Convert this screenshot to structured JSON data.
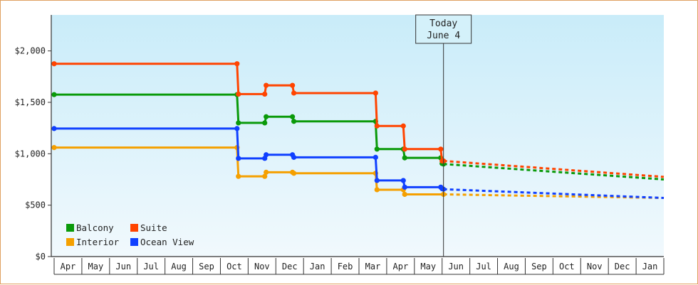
{
  "chart_data": {
    "type": "line",
    "title": "",
    "xlabel": "",
    "ylabel": "",
    "x_ticks": [
      "Apr",
      "May",
      "Jun",
      "Jul",
      "Aug",
      "Sep",
      "Oct",
      "Nov",
      "Dec",
      "Jan",
      "Feb",
      "Mar",
      "Apr",
      "May",
      "Jun",
      "Jul",
      "Aug",
      "Sep",
      "Oct",
      "Nov",
      "Dec",
      "Jan"
    ],
    "y_ticks": [
      {
        "value": 0,
        "label": "$0"
      },
      {
        "value": 500,
        "label": "$500"
      },
      {
        "value": 1000,
        "label": "$1,000"
      },
      {
        "value": 1500,
        "label": "$1,500"
      },
      {
        "value": 2000,
        "label": "$2,000"
      }
    ],
    "ylim": [
      0,
      2350
    ],
    "xlim": [
      0,
      22.0
    ],
    "step_lines": true,
    "today_marker": {
      "line1": "Today",
      "line2": "June 4",
      "x": 14.05
    },
    "legend_position": "bottom-left",
    "series": [
      {
        "name": "Balcony",
        "color": "#0a9a0a",
        "points": [
          [
            0,
            1575
          ],
          [
            6.6,
            1575
          ],
          [
            6.65,
            1300
          ],
          [
            7.6,
            1300
          ],
          [
            7.65,
            1360
          ],
          [
            8.6,
            1360
          ],
          [
            8.65,
            1315
          ],
          [
            11.6,
            1315
          ],
          [
            11.65,
            1045
          ],
          [
            12.6,
            1045
          ],
          [
            12.65,
            960
          ],
          [
            13.95,
            960
          ],
          [
            14.0,
            905
          ],
          [
            14.05,
            900
          ]
        ],
        "projection": [
          [
            14.05,
            900
          ],
          [
            22.0,
            750
          ]
        ]
      },
      {
        "name": "Suite",
        "color": "#ff4400",
        "points": [
          [
            0,
            1875
          ],
          [
            6.6,
            1875
          ],
          [
            6.65,
            1580
          ],
          [
            7.6,
            1580
          ],
          [
            7.65,
            1665
          ],
          [
            8.6,
            1665
          ],
          [
            8.65,
            1590
          ],
          [
            11.6,
            1590
          ],
          [
            11.65,
            1270
          ],
          [
            12.6,
            1270
          ],
          [
            12.65,
            1045
          ],
          [
            13.95,
            1045
          ],
          [
            14.0,
            930
          ],
          [
            14.05,
            930
          ]
        ],
        "projection": [
          [
            14.05,
            930
          ],
          [
            22.0,
            775
          ]
        ]
      },
      {
        "name": "Interior",
        "color": "#f5a000",
        "points": [
          [
            0,
            1060
          ],
          [
            6.6,
            1060
          ],
          [
            6.65,
            780
          ],
          [
            7.6,
            780
          ],
          [
            7.65,
            820
          ],
          [
            8.6,
            820
          ],
          [
            8.65,
            810
          ],
          [
            11.6,
            810
          ],
          [
            11.65,
            650
          ],
          [
            12.6,
            650
          ],
          [
            12.65,
            605
          ],
          [
            14.05,
            605
          ]
        ],
        "projection": [
          [
            14.05,
            605
          ],
          [
            22.0,
            570
          ]
        ]
      },
      {
        "name": "Ocean View",
        "color": "#1040ff",
        "points": [
          [
            0,
            1245
          ],
          [
            6.6,
            1245
          ],
          [
            6.65,
            955
          ],
          [
            7.6,
            955
          ],
          [
            7.65,
            990
          ],
          [
            8.6,
            990
          ],
          [
            8.65,
            965
          ],
          [
            11.6,
            965
          ],
          [
            11.65,
            740
          ],
          [
            12.6,
            740
          ],
          [
            12.65,
            675
          ],
          [
            13.95,
            675
          ],
          [
            14.0,
            660
          ],
          [
            14.05,
            655
          ]
        ],
        "projection": [
          [
            14.05,
            655
          ],
          [
            22.0,
            570
          ]
        ]
      }
    ]
  }
}
